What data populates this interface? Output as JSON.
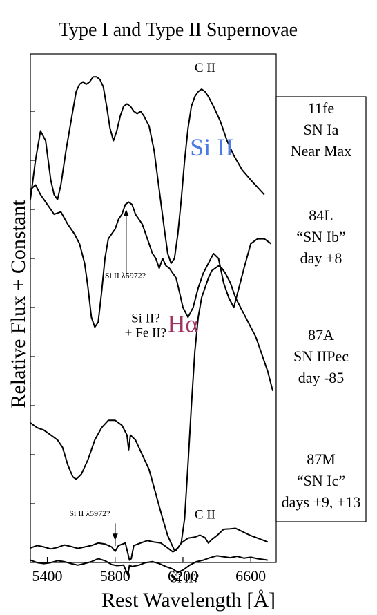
{
  "chart_data": {
    "type": "line",
    "title": "Type I and Type II Supernovae",
    "xlabel": "Rest Wavelength [Å]",
    "ylabel": "Relative Flux + Constant",
    "xlim": [
      5300,
      6750
    ],
    "ylim": [
      0,
      100
    ],
    "xticks": [
      {
        "value": 5400,
        "label": "5400"
      },
      {
        "value": 5800,
        "label": "5800"
      },
      {
        "value": 6200,
        "label": "6200"
      },
      {
        "value": 6600,
        "label": "6600"
      }
    ],
    "yticks": [
      10,
      20,
      30,
      40,
      50,
      60,
      70,
      80,
      90
    ],
    "grid": false,
    "series": [
      {
        "points": [
          [
            5300,
            72
          ],
          [
            5330,
            80
          ],
          [
            5360,
            86
          ],
          [
            5390,
            84
          ],
          [
            5420,
            76
          ],
          [
            5440,
            73
          ],
          [
            5460,
            72
          ],
          [
            5480,
            75
          ],
          [
            5510,
            82
          ],
          [
            5540,
            88
          ],
          [
            5570,
            94
          ],
          [
            5590,
            95.5
          ],
          [
            5610,
            96
          ],
          [
            5630,
            95.5
          ],
          [
            5650,
            96
          ],
          [
            5670,
            97
          ],
          [
            5690,
            97
          ],
          [
            5710,
            96.5
          ],
          [
            5730,
            95
          ],
          [
            5750,
            91
          ],
          [
            5770,
            86.5
          ],
          [
            5790,
            84
          ],
          [
            5810,
            86
          ],
          [
            5830,
            89
          ],
          [
            5850,
            91
          ],
          [
            5870,
            91.5
          ],
          [
            5890,
            91
          ],
          [
            5910,
            90
          ],
          [
            5930,
            89.5
          ],
          [
            5950,
            90
          ],
          [
            5970,
            89
          ],
          [
            6000,
            87
          ],
          [
            6030,
            82
          ],
          [
            6060,
            74
          ],
          [
            6090,
            66
          ],
          [
            6110,
            61
          ],
          [
            6130,
            59
          ],
          [
            6150,
            60
          ],
          [
            6170,
            65
          ],
          [
            6190,
            72
          ],
          [
            6210,
            80
          ],
          [
            6230,
            86.5
          ],
          [
            6250,
            91
          ],
          [
            6270,
            93
          ],
          [
            6290,
            94
          ],
          [
            6310,
            94.5
          ],
          [
            6330,
            94
          ],
          [
            6350,
            93
          ],
          [
            6380,
            91
          ],
          [
            6420,
            88
          ],
          [
            6460,
            84
          ],
          [
            6500,
            81
          ],
          [
            6550,
            78
          ],
          [
            6600,
            76
          ],
          [
            6640,
            74.5
          ],
          [
            6680,
            73
          ]
        ]
      },
      {
        "points": [
          [
            5300,
            74
          ],
          [
            5330,
            75
          ],
          [
            5360,
            73
          ],
          [
            5400,
            71
          ],
          [
            5440,
            69
          ],
          [
            5480,
            69.5
          ],
          [
            5520,
            67
          ],
          [
            5560,
            65
          ],
          [
            5590,
            63
          ],
          [
            5620,
            59
          ],
          [
            5640,
            54
          ],
          [
            5660,
            48
          ],
          [
            5680,
            46
          ],
          [
            5700,
            47
          ],
          [
            5720,
            53
          ],
          [
            5740,
            60
          ],
          [
            5760,
            64
          ],
          [
            5780,
            65
          ],
          [
            5800,
            66
          ],
          [
            5820,
            68
          ],
          [
            5840,
            69
          ],
          [
            5860,
            71
          ],
          [
            5880,
            71.5
          ],
          [
            5900,
            71
          ],
          [
            5920,
            69
          ],
          [
            5940,
            68
          ],
          [
            5960,
            67
          ],
          [
            5980,
            65
          ],
          [
            6000,
            63
          ],
          [
            6020,
            61
          ],
          [
            6040,
            60
          ],
          [
            6060,
            58
          ],
          [
            6080,
            60
          ],
          [
            6100,
            58.5
          ],
          [
            6120,
            58
          ],
          [
            6140,
            57
          ],
          [
            6160,
            56
          ],
          [
            6180,
            53
          ],
          [
            6200,
            50
          ],
          [
            6230,
            48
          ],
          [
            6260,
            50
          ],
          [
            6290,
            54
          ],
          [
            6320,
            57
          ],
          [
            6350,
            59
          ],
          [
            6380,
            61
          ],
          [
            6410,
            60
          ],
          [
            6440,
            55
          ],
          [
            6470,
            52
          ],
          [
            6500,
            50
          ],
          [
            6530,
            54
          ],
          [
            6560,
            58
          ],
          [
            6600,
            63
          ],
          [
            6640,
            64
          ],
          [
            6680,
            64
          ],
          [
            6720,
            63
          ]
        ]
      },
      {
        "points": [
          [
            5300,
            26.5
          ],
          [
            5340,
            25.5
          ],
          [
            5380,
            25
          ],
          [
            5420,
            24
          ],
          [
            5460,
            23
          ],
          [
            5490,
            21.5
          ],
          [
            5520,
            18
          ],
          [
            5550,
            15.5
          ],
          [
            5570,
            15
          ],
          [
            5600,
            16
          ],
          [
            5640,
            19
          ],
          [
            5680,
            23
          ],
          [
            5720,
            25.5
          ],
          [
            5760,
            27
          ],
          [
            5800,
            27
          ],
          [
            5840,
            26
          ],
          [
            5870,
            24
          ],
          [
            5880,
            21
          ],
          [
            5890,
            24
          ],
          [
            5920,
            23
          ],
          [
            5960,
            20
          ],
          [
            6000,
            17
          ],
          [
            6040,
            12
          ],
          [
            6080,
            7
          ],
          [
            6110,
            3.5
          ],
          [
            6130,
            2
          ],
          [
            6150,
            0.5
          ],
          [
            6170,
            1
          ],
          [
            6190,
            2
          ],
          [
            6210,
            7
          ],
          [
            6230,
            18
          ],
          [
            6250,
            30
          ],
          [
            6270,
            41
          ],
          [
            6290,
            48
          ],
          [
            6310,
            52
          ],
          [
            6330,
            54
          ],
          [
            6350,
            56
          ],
          [
            6370,
            57.5
          ],
          [
            6390,
            58
          ],
          [
            6410,
            58.5
          ],
          [
            6430,
            58
          ],
          [
            6450,
            57
          ],
          [
            6480,
            55
          ],
          [
            6510,
            52
          ],
          [
            6540,
            50
          ],
          [
            6570,
            48
          ],
          [
            6600,
            46
          ],
          [
            6630,
            44
          ],
          [
            6660,
            41
          ],
          [
            6700,
            37
          ],
          [
            6730,
            33
          ]
        ]
      },
      {
        "points": [
          [
            5300,
            1
          ],
          [
            5340,
            1.5
          ],
          [
            5380,
            1.2
          ],
          [
            5420,
            0.8
          ],
          [
            5460,
            1.1
          ],
          [
            5500,
            1.6
          ],
          [
            5540,
            1.3
          ],
          [
            5580,
            0.9
          ],
          [
            5620,
            1.2
          ],
          [
            5660,
            1.5
          ],
          [
            5700,
            2
          ],
          [
            5740,
            1.8
          ],
          [
            5780,
            1.2
          ],
          [
            5800,
            0.3
          ],
          [
            5820,
            1.5
          ],
          [
            5860,
            2
          ],
          [
            5885,
            -1.5
          ],
          [
            5895,
            -1.2
          ],
          [
            5910,
            1.5
          ],
          [
            5950,
            2
          ],
          [
            5990,
            2.5
          ],
          [
            6030,
            2.2
          ],
          [
            6070,
            2
          ],
          [
            6110,
            1
          ],
          [
            6140,
            0.2
          ],
          [
            6160,
            0.5
          ],
          [
            6190,
            2
          ],
          [
            6230,
            3
          ],
          [
            6270,
            3.2
          ],
          [
            6300,
            3.6
          ],
          [
            6330,
            3.1
          ],
          [
            6350,
            2
          ],
          [
            6370,
            2.7
          ],
          [
            6400,
            3.5
          ],
          [
            6440,
            4.8
          ],
          [
            6480,
            4.9
          ],
          [
            6510,
            5
          ],
          [
            6540,
            4.5
          ],
          [
            6570,
            4
          ],
          [
            6600,
            3.5
          ],
          [
            6640,
            3
          ],
          [
            6680,
            2.5
          ],
          [
            6700,
            2.2
          ]
        ]
      },
      {
        "points": [
          [
            5300,
            -1.5
          ],
          [
            5340,
            -2
          ],
          [
            5380,
            -2.2
          ],
          [
            5420,
            -2
          ],
          [
            5460,
            -1.6
          ],
          [
            5500,
            -1.8
          ],
          [
            5540,
            -2.2
          ],
          [
            5580,
            -2.5
          ],
          [
            5620,
            -2.2
          ],
          [
            5660,
            -1.8
          ],
          [
            5700,
            -1.2
          ],
          [
            5740,
            -1.6
          ],
          [
            5780,
            -2.4
          ],
          [
            5810,
            -2.6
          ],
          [
            5850,
            -2.5
          ],
          [
            5875,
            -4.5
          ],
          [
            5885,
            -2.5
          ],
          [
            5900,
            -2.8
          ],
          [
            5940,
            -2.5
          ],
          [
            5980,
            -2
          ],
          [
            6020,
            -1.8
          ],
          [
            6060,
            -2.2
          ],
          [
            6100,
            -2.8
          ],
          [
            6140,
            -3.3
          ],
          [
            6170,
            -4
          ],
          [
            6200,
            -3.5
          ],
          [
            6240,
            -2.5
          ],
          [
            6280,
            -1.8
          ],
          [
            6320,
            -1.5
          ],
          [
            6360,
            -1
          ],
          [
            6400,
            -0.6
          ],
          [
            6440,
            -0.8
          ],
          [
            6480,
            -1
          ],
          [
            6520,
            -0.7
          ],
          [
            6560,
            -1.1
          ],
          [
            6600,
            -0.9
          ],
          [
            6640,
            -1.2
          ],
          [
            6680,
            -1.4
          ],
          [
            6700,
            -1.5
          ]
        ]
      }
    ],
    "annotations": [
      {
        "text": "C II",
        "x": 6330,
        "y": 98,
        "size": "medium",
        "color": "#000000"
      },
      {
        "text": "Si II",
        "x": 6370,
        "y": 81,
        "size": "large",
        "color": "#4a7ae6"
      },
      {
        "text": "Si II λ5972?",
        "x": 5860,
        "y": 56,
        "size": "small",
        "color": "#000000"
      },
      {
        "text": "Si II?",
        "x": 5980,
        "y": 47,
        "size": "medium",
        "color": "#000000"
      },
      {
        "text": "+ Fe II?",
        "x": 5980,
        "y": 44,
        "size": "medium",
        "color": "#000000"
      },
      {
        "text": "Hα",
        "x": 6200,
        "y": 45,
        "size": "large",
        "color": "#a03060"
      },
      {
        "text": "Si II λ5972?",
        "x": 5650,
        "y": 7.5,
        "size": "small",
        "color": "#000000"
      },
      {
        "text": "C II",
        "x": 6330,
        "y": 7,
        "size": "medium",
        "color": "#000000"
      },
      {
        "text": "Si II?",
        "x": 6210,
        "y": -6,
        "size": "medium",
        "color": "#000000"
      }
    ],
    "arrows": [
      {
        "x": 5865,
        "y_from": 56,
        "y_to": 70
      },
      {
        "x": 5800,
        "y_from": 6,
        "y_to": 2.5
      }
    ],
    "legend_boxes": [
      {
        "lines": [
          "11fe",
          "SN Ia",
          "Near Max"
        ]
      },
      {
        "lines": [
          "84L",
          "“SN Ib”",
          "day +8"
        ]
      },
      {
        "lines": [
          "87A",
          "SN IIPec",
          "day -85"
        ]
      },
      {
        "lines": [
          "87M",
          "“SN Ic”",
          "days +9, +13"
        ]
      }
    ],
    "legend_placement": "right"
  }
}
